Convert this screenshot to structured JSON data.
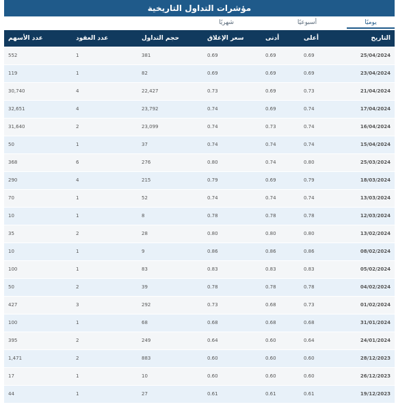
{
  "title": "مؤشرات التداول التاريخية",
  "tabs": [
    {
      "label": "يوميًا",
      "active": true
    },
    {
      "label": "أسبوعيًا",
      "active": false
    },
    {
      "label": "شهريًا",
      "active": false
    }
  ],
  "columns": {
    "date": "التاريخ",
    "high": "أعلى",
    "low": "أدنى",
    "close": "سعر الإغلاق",
    "volume": "حجم التداول",
    "trades": "عدد العقود",
    "shares": "عدد الأسهم"
  },
  "rows": [
    {
      "date": "25/04/2024",
      "high": "0.69",
      "low": "0.69",
      "close": "0.69",
      "volume": "381",
      "trades": "1",
      "shares": "552"
    },
    {
      "date": "23/04/2024",
      "high": "0.69",
      "low": "0.69",
      "close": "0.69",
      "volume": "82",
      "trades": "1",
      "shares": "119"
    },
    {
      "date": "21/04/2024",
      "high": "0.73",
      "low": "0.69",
      "close": "0.73",
      "volume": "22,427",
      "trades": "4",
      "shares": "30,740"
    },
    {
      "date": "17/04/2024",
      "high": "0.74",
      "low": "0.69",
      "close": "0.74",
      "volume": "23,792",
      "trades": "4",
      "shares": "32,651"
    },
    {
      "date": "16/04/2024",
      "high": "0.74",
      "low": "0.73",
      "close": "0.74",
      "volume": "23,099",
      "trades": "2",
      "shares": "31,640"
    },
    {
      "date": "15/04/2024",
      "high": "0.74",
      "low": "0.74",
      "close": "0.74",
      "volume": "37",
      "trades": "1",
      "shares": "50"
    },
    {
      "date": "25/03/2024",
      "high": "0.80",
      "low": "0.74",
      "close": "0.80",
      "volume": "276",
      "trades": "6",
      "shares": "368"
    },
    {
      "date": "18/03/2024",
      "high": "0.79",
      "low": "0.69",
      "close": "0.79",
      "volume": "215",
      "trades": "4",
      "shares": "290"
    },
    {
      "date": "13/03/2024",
      "high": "0.74",
      "low": "0.74",
      "close": "0.74",
      "volume": "52",
      "trades": "1",
      "shares": "70"
    },
    {
      "date": "12/03/2024",
      "high": "0.78",
      "low": "0.78",
      "close": "0.78",
      "volume": "8",
      "trades": "1",
      "shares": "10"
    },
    {
      "date": "13/02/2024",
      "high": "0.80",
      "low": "0.80",
      "close": "0.80",
      "volume": "28",
      "trades": "2",
      "shares": "35"
    },
    {
      "date": "08/02/2024",
      "high": "0.86",
      "low": "0.86",
      "close": "0.86",
      "volume": "9",
      "trades": "1",
      "shares": "10"
    },
    {
      "date": "05/02/2024",
      "high": "0.83",
      "low": "0.83",
      "close": "0.83",
      "volume": "83",
      "trades": "1",
      "shares": "100"
    },
    {
      "date": "04/02/2024",
      "high": "0.78",
      "low": "0.78",
      "close": "0.78",
      "volume": "39",
      "trades": "2",
      "shares": "50"
    },
    {
      "date": "01/02/2024",
      "high": "0.73",
      "low": "0.68",
      "close": "0.73",
      "volume": "292",
      "trades": "3",
      "shares": "427"
    },
    {
      "date": "31/01/2024",
      "high": "0.68",
      "low": "0.68",
      "close": "0.68",
      "volume": "68",
      "trades": "1",
      "shares": "100"
    },
    {
      "date": "24/01/2024",
      "high": "0.64",
      "low": "0.60",
      "close": "0.64",
      "volume": "249",
      "trades": "2",
      "shares": "395"
    },
    {
      "date": "28/12/2023",
      "high": "0.60",
      "low": "0.60",
      "close": "0.60",
      "volume": "883",
      "trades": "2",
      "shares": "1,471"
    },
    {
      "date": "26/12/2023",
      "high": "0.60",
      "low": "0.60",
      "close": "0.60",
      "volume": "10",
      "trades": "1",
      "shares": "17"
    },
    {
      "date": "19/12/2023",
      "high": "0.61",
      "low": "0.61",
      "close": "0.61",
      "volume": "27",
      "trades": "1",
      "shares": "44"
    }
  ]
}
